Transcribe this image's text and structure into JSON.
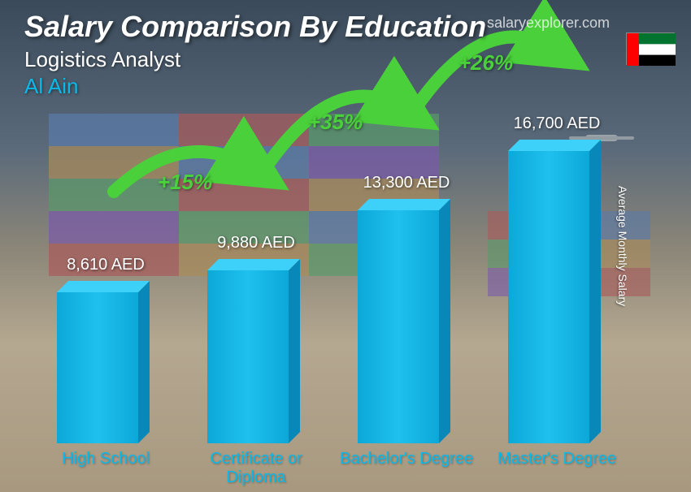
{
  "header": {
    "title": "Salary Comparison By Education",
    "subtitle": "Logistics Analyst",
    "location": "Al Ain"
  },
  "site_credit": "salaryexplorer.com",
  "yaxis_label": "Average Monthly Salary",
  "flag": {
    "country": "United Arab Emirates",
    "stripes": [
      "#00732f",
      "#ffffff",
      "#000000"
    ],
    "hoist": "#ff0000"
  },
  "chart": {
    "type": "bar",
    "bar_color": "#0bb8e8",
    "bar_color_side": "#0888b8",
    "bar_color_top": "#3dd0f8",
    "label_color": "#0bb8e8",
    "value_color": "#ffffff",
    "label_fontsize": 20,
    "value_fontsize": 20,
    "currency": "AED",
    "max_value": 16700,
    "bars": [
      {
        "label": "High School",
        "value": 8610,
        "display": "8,610 AED"
      },
      {
        "label": "Certificate or Diploma",
        "value": 9880,
        "display": "9,880 AED"
      },
      {
        "label": "Bachelor's Degree",
        "value": 13300,
        "display": "13,300 AED"
      },
      {
        "label": "Master's Degree",
        "value": 16700,
        "display": "16,700 AED"
      }
    ],
    "jumps": [
      {
        "from": 0,
        "to": 1,
        "pct": "+15%"
      },
      {
        "from": 1,
        "to": 2,
        "pct": "+35%"
      },
      {
        "from": 2,
        "to": 3,
        "pct": "+26%"
      }
    ],
    "jump_color": "#4ad03a",
    "jump_fontsize": 26
  },
  "background": {
    "container_colors": [
      "#3a5a8a",
      "#8a3a3a",
      "#3a7a4a",
      "#aa6a3a",
      "#6a4a8a"
    ]
  }
}
